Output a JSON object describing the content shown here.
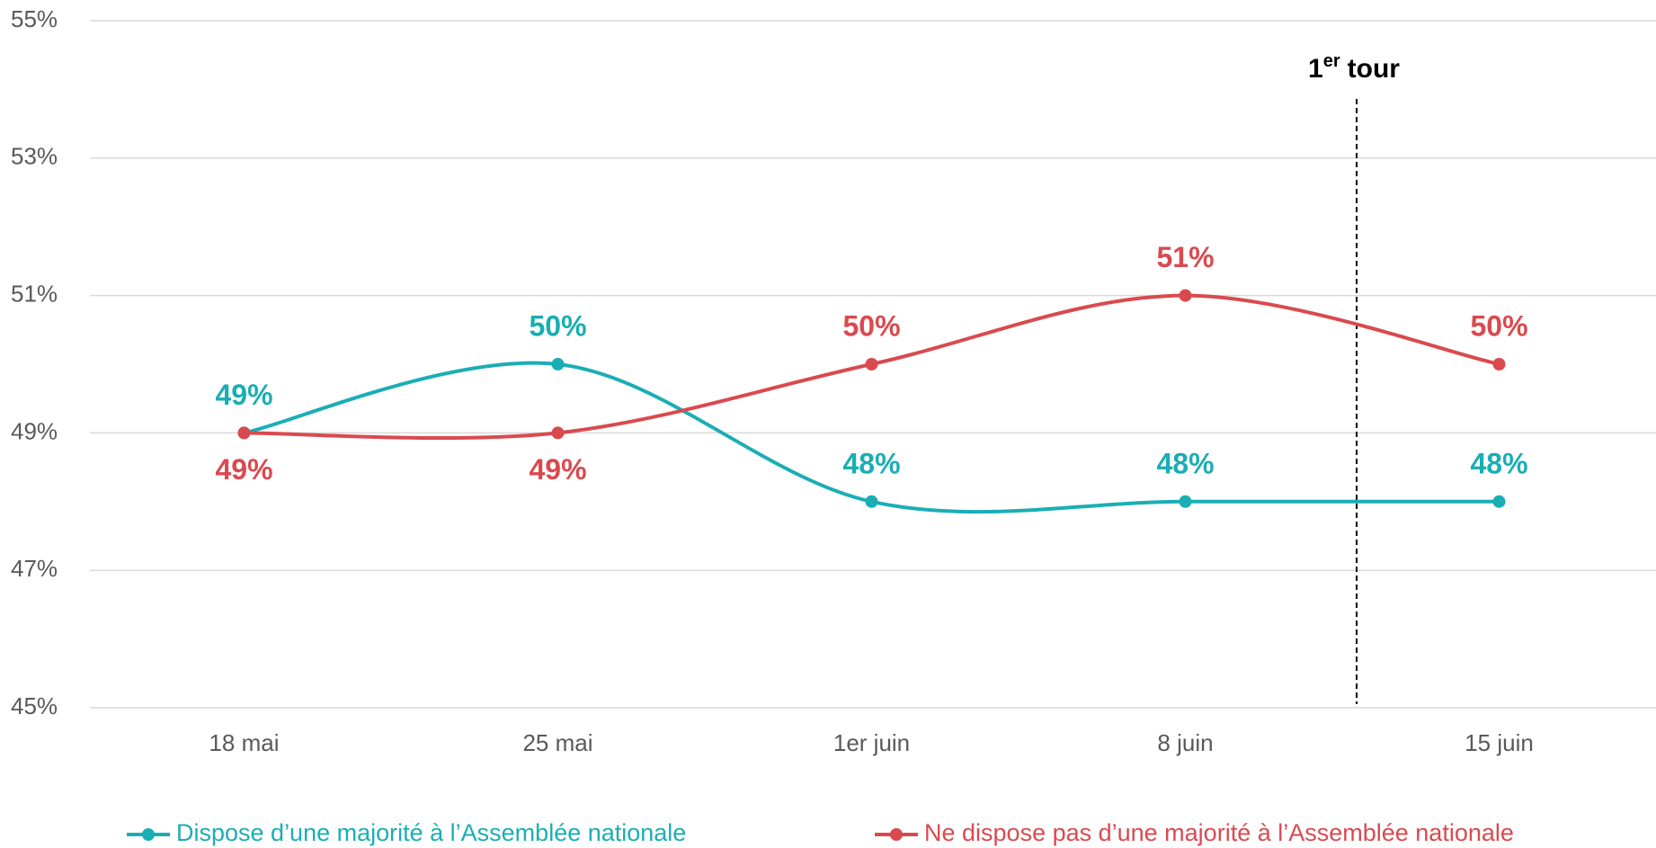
{
  "chart_data": {
    "type": "line",
    "categories": [
      "18 mai",
      "25 mai",
      "1er juin",
      "8 juin",
      "15 juin"
    ],
    "series": [
      {
        "name": "Dispose d’une majorité à l’Assemblée nationale",
        "color": "#1aaeb4",
        "values": [
          49,
          50,
          48,
          48,
          48
        ],
        "value_labels": [
          "49%",
          "50%",
          "48%",
          "48%",
          "48%"
        ]
      },
      {
        "name": "Ne dispose pas d’une majorité à l’Assemblée nationale",
        "color": "#d94a4f",
        "values": [
          49,
          49,
          50,
          51,
          50
        ],
        "value_labels": [
          "49%",
          "49%",
          "50%",
          "51%",
          "50%"
        ]
      }
    ],
    "ylim": [
      45,
      55
    ],
    "yticks": [
      {
        "value": 45,
        "label": "45%"
      },
      {
        "value": 47,
        "label": "47%"
      },
      {
        "value": 49,
        "label": "49%"
      },
      {
        "value": 51,
        "label": "51%"
      },
      {
        "value": 53,
        "label": "53%"
      },
      {
        "value": 55,
        "label": "55%"
      }
    ],
    "grid": true,
    "legend": "bottom",
    "annotation": {
      "number": "1",
      "superscript": "er",
      "text": "tour"
    }
  }
}
